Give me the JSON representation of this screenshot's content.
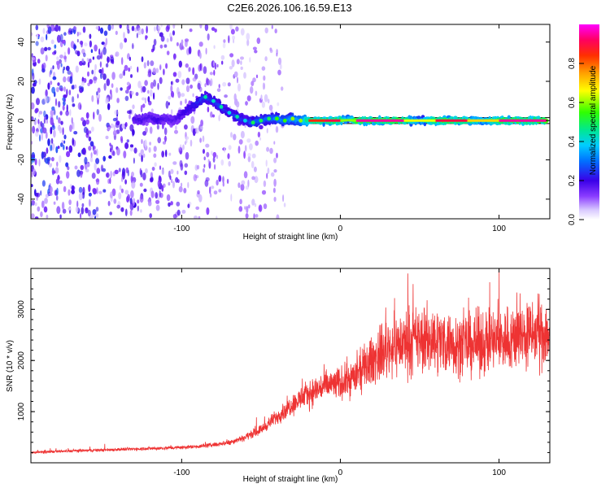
{
  "title": "C2E6.2026.106.16.59.E13",
  "chart_data": [
    {
      "type": "heatmap",
      "xlabel": "Height of straight line (km)",
      "ylabel": "Frequency (Hz)",
      "xlim": [
        -195,
        132
      ],
      "ylim": [
        -50,
        49
      ],
      "xticks": [
        -100,
        0,
        100
      ],
      "yticks": [
        -40,
        -20,
        0,
        20,
        40
      ],
      "grid": false,
      "colorbar": {
        "label": "Normalized spectral amplitude",
        "range": [
          0,
          1
        ],
        "ticks": [
          0.0,
          0.2,
          0.4,
          0.6,
          0.8
        ],
        "tick_labels": [
          "0.0",
          "0.2",
          "0.4",
          "0.6",
          "0.8"
        ],
        "colormap": [
          "#ffffff",
          "#d8c8ff",
          "#8a3cff",
          "#3a00e8",
          "#0060ff",
          "#00ccff",
          "#00e880",
          "#30ff00",
          "#ffff00",
          "#ffa000",
          "#ff3000",
          "#ff0060",
          "#ff00ff"
        ]
      },
      "noise_region_km": [
        -195,
        -35
      ],
      "trail": [
        {
          "x": -130,
          "freq": 1,
          "amp": 0.3
        },
        {
          "x": -125,
          "freq": 0,
          "amp": 0.32
        },
        {
          "x": -120,
          "freq": 2,
          "amp": 0.3
        },
        {
          "x": -115,
          "freq": 0,
          "amp": 0.35
        },
        {
          "x": -110,
          "freq": 1,
          "amp": 0.3
        },
        {
          "x": -105,
          "freq": 0,
          "amp": 0.3
        },
        {
          "x": -85,
          "freq": 12,
          "amp": 0.45
        },
        {
          "x": -80,
          "freq": 10,
          "amp": 0.42
        },
        {
          "x": -75,
          "freq": 7,
          "amp": 0.45
        },
        {
          "x": -70,
          "freq": 4,
          "amp": 0.4
        },
        {
          "x": -65,
          "freq": 2,
          "amp": 0.45
        },
        {
          "x": -60,
          "freq": 0,
          "amp": 0.4
        },
        {
          "x": -55,
          "freq": -1,
          "amp": 0.5
        },
        {
          "x": -50,
          "freq": 0,
          "amp": 0.5
        },
        {
          "x": -45,
          "freq": 1,
          "amp": 0.5
        },
        {
          "x": -40,
          "freq": 1,
          "amp": 0.55
        },
        {
          "x": -35,
          "freq": 0,
          "amp": 0.55
        },
        {
          "x": -30,
          "freq": 1,
          "amp": 0.6
        },
        {
          "x": -25,
          "freq": 0,
          "amp": 0.6
        },
        {
          "x": -20,
          "freq": 0,
          "amp": 0.85
        },
        {
          "x": -10,
          "freq": 0,
          "amp": 0.9
        },
        {
          "x": 0,
          "freq": 0,
          "amp": 0.95
        },
        {
          "x": 5,
          "freq": 1,
          "amp": 0.6
        },
        {
          "x": 10,
          "freq": 0,
          "amp": 0.95
        },
        {
          "x": 20,
          "freq": 0,
          "amp": 0.95
        },
        {
          "x": 40,
          "freq": 0,
          "amp": 0.95
        },
        {
          "x": 50,
          "freq": 0,
          "amp": 0.65
        },
        {
          "x": 60,
          "freq": 0,
          "amp": 0.95
        },
        {
          "x": 80,
          "freq": 0,
          "amp": 0.9
        },
        {
          "x": 90,
          "freq": 0,
          "amp": 0.7
        },
        {
          "x": 100,
          "freq": 0,
          "amp": 0.95
        },
        {
          "x": 110,
          "freq": 0,
          "amp": 0.95
        },
        {
          "x": 130,
          "freq": 0,
          "amp": 0.95
        }
      ],
      "reference_lines_hz": [
        1.5,
        -1.5
      ]
    },
    {
      "type": "line",
      "xlabel": "Height of straight line (km)",
      "ylabel": "SNR (10 * v/v)",
      "xlim": [
        -195,
        132
      ],
      "ylim": [
        0,
        3800
      ],
      "xticks": [
        -100,
        0,
        100
      ],
      "yticks": [
        1000,
        2000,
        3000
      ],
      "grid": false,
      "series": [
        {
          "name": "SNR",
          "color": "#ee3333",
          "x": [
            -195,
            -180,
            -160,
            -140,
            -120,
            -100,
            -90,
            -80,
            -70,
            -60,
            -50,
            -40,
            -30,
            -20,
            -10,
            0,
            10,
            20,
            30,
            40,
            50,
            60,
            70,
            80,
            90,
            100,
            110,
            120,
            132
          ],
          "values": [
            200,
            220,
            240,
            260,
            280,
            300,
            320,
            350,
            400,
            500,
            650,
            900,
            1150,
            1350,
            1500,
            1550,
            1700,
            2000,
            2250,
            2350,
            2400,
            2400,
            2350,
            2300,
            2350,
            2400,
            2450,
            2500,
            2550
          ]
        }
      ]
    }
  ]
}
